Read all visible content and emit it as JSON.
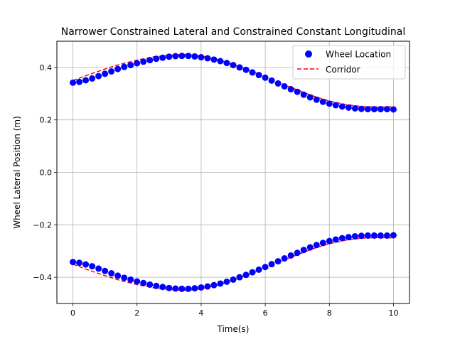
{
  "chart_data": {
    "type": "scatter",
    "title": "Narrower Constrained Lateral and Constrained Constant Longitudinal",
    "xlabel": "Time(s)",
    "ylabel": "Wheel Lateral Position (m)",
    "xlim": [
      -0.5,
      10.5
    ],
    "ylim": [
      -0.5,
      0.5
    ],
    "x_ticks": [
      0,
      2,
      4,
      6,
      8,
      10
    ],
    "x_tick_labels": [
      "0",
      "2",
      "4",
      "6",
      "8",
      "10"
    ],
    "y_ticks": [
      -0.4,
      -0.2,
      0.0,
      0.2,
      0.4
    ],
    "y_tick_labels": [
      "−0.4",
      "−0.2",
      "0.0",
      "0.2",
      "0.4"
    ],
    "grid": true,
    "legend": {
      "placement": "top-right",
      "entries": [
        {
          "label": "Wheel Location",
          "marker": "circle",
          "color": "#0000ff"
        },
        {
          "label": "Corridor",
          "line": "dashed",
          "color": "#ff0000"
        }
      ]
    },
    "series": [
      {
        "name": "Wheel Location",
        "kind": "points",
        "color": "#0000ff",
        "x": [
          0.0,
          0.2,
          0.4,
          0.6,
          0.8,
          1.0,
          1.2,
          1.4,
          1.6,
          1.8,
          2.0,
          2.2,
          2.4,
          2.6,
          2.8,
          3.0,
          3.2,
          3.4,
          3.6,
          3.8,
          4.0,
          4.2,
          4.4,
          4.6,
          4.8,
          5.0,
          5.2,
          5.4,
          5.6,
          5.8,
          6.0,
          6.2,
          6.4,
          6.6,
          6.8,
          7.0,
          7.2,
          7.4,
          7.6,
          7.8,
          8.0,
          8.2,
          8.4,
          8.6,
          8.8,
          9.0,
          9.2,
          9.4,
          9.6,
          9.8,
          10.0
        ],
        "y_upper": [
          0.342,
          0.345,
          0.351,
          0.358,
          0.367,
          0.376,
          0.385,
          0.394,
          0.402,
          0.409,
          0.416,
          0.422,
          0.428,
          0.433,
          0.437,
          0.441,
          0.443,
          0.444,
          0.444,
          0.442,
          0.439,
          0.435,
          0.43,
          0.424,
          0.417,
          0.409,
          0.4,
          0.391,
          0.381,
          0.371,
          0.361,
          0.35,
          0.339,
          0.328,
          0.317,
          0.307,
          0.296,
          0.286,
          0.277,
          0.269,
          0.262,
          0.256,
          0.251,
          0.247,
          0.244,
          0.242,
          0.241,
          0.241,
          0.241,
          0.241,
          0.24
        ],
        "y_lower": [
          -0.342,
          -0.345,
          -0.351,
          -0.358,
          -0.367,
          -0.376,
          -0.385,
          -0.394,
          -0.402,
          -0.409,
          -0.416,
          -0.422,
          -0.428,
          -0.433,
          -0.437,
          -0.441,
          -0.443,
          -0.444,
          -0.444,
          -0.442,
          -0.439,
          -0.435,
          -0.43,
          -0.424,
          -0.417,
          -0.409,
          -0.4,
          -0.391,
          -0.381,
          -0.371,
          -0.361,
          -0.35,
          -0.339,
          -0.328,
          -0.317,
          -0.307,
          -0.296,
          -0.286,
          -0.277,
          -0.269,
          -0.262,
          -0.256,
          -0.251,
          -0.247,
          -0.244,
          -0.242,
          -0.241,
          -0.241,
          -0.241,
          -0.241,
          -0.24
        ]
      },
      {
        "name": "Corridor",
        "kind": "dashed-line",
        "color": "#ff0000",
        "x": [
          0,
          0.5,
          1.0,
          1.5,
          2.0,
          2.5,
          3.0,
          3.5,
          4.0,
          4.5,
          5.0,
          5.5,
          6.0,
          6.5,
          7.0,
          7.5,
          8.0,
          8.5,
          9.0,
          9.5,
          10.0
        ],
        "y_upper": [
          0.35,
          0.373,
          0.394,
          0.413,
          0.428,
          0.44,
          0.447,
          0.45,
          0.444,
          0.43,
          0.411,
          0.389,
          0.364,
          0.339,
          0.314,
          0.291,
          0.272,
          0.259,
          0.251,
          0.249,
          0.25
        ],
        "y_lower": [
          -0.35,
          -0.373,
          -0.394,
          -0.413,
          -0.428,
          -0.44,
          -0.447,
          -0.45,
          -0.444,
          -0.43,
          -0.411,
          -0.389,
          -0.364,
          -0.339,
          -0.314,
          -0.291,
          -0.272,
          -0.259,
          -0.251,
          -0.249,
          -0.25
        ]
      }
    ]
  }
}
